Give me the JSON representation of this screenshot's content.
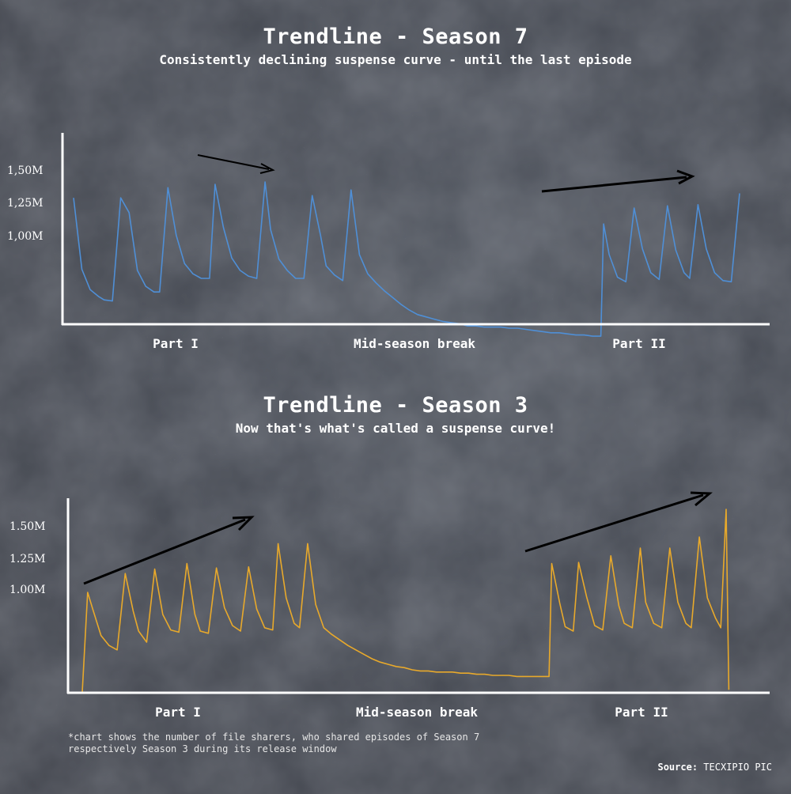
{
  "colors": {
    "season7": "#4f8fd6",
    "season3": "#e8a92b",
    "arrow": "#000000",
    "axis": "#ffffff"
  },
  "chart_data": [
    {
      "type": "line",
      "title": "Trendline - Season 7",
      "subtitle": "Consistently declining suspense curve - until the last episode",
      "ytick_labels": [
        "1,50M",
        "1,25M",
        "1,00M"
      ],
      "yticks": [
        1.5,
        1.25,
        1.0
      ],
      "ylim": [
        0.0,
        1.8
      ],
      "xlim": [
        0,
        240
      ],
      "sections": [
        "Part I",
        "Mid-season break",
        "Part II"
      ],
      "series": [
        {
          "points": [
            [
              0,
              1.38
            ],
            [
              3,
              0.75
            ],
            [
              6,
              0.57
            ],
            [
              9,
              0.51
            ],
            [
              11,
              0.48
            ],
            [
              14,
              0.47
            ],
            [
              17,
              1.38
            ],
            [
              20,
              1.25
            ],
            [
              23,
              0.74
            ],
            [
              26,
              0.6
            ],
            [
              29,
              0.55
            ],
            [
              31,
              0.55
            ],
            [
              34,
              1.47
            ],
            [
              37,
              1.05
            ],
            [
              40,
              0.8
            ],
            [
              43,
              0.71
            ],
            [
              46,
              0.67
            ],
            [
              49,
              0.67
            ],
            [
              51,
              1.5
            ],
            [
              54,
              1.12
            ],
            [
              57,
              0.85
            ],
            [
              60,
              0.74
            ],
            [
              63,
              0.69
            ],
            [
              66,
              0.67
            ],
            [
              69,
              1.52
            ],
            [
              71,
              1.1
            ],
            [
              74,
              0.84
            ],
            [
              77,
              0.74
            ],
            [
              80,
              0.67
            ],
            [
              83,
              0.67
            ],
            [
              86,
              1.4
            ],
            [
              89,
              1.05
            ],
            [
              91,
              0.78
            ],
            [
              94,
              0.7
            ],
            [
              97,
              0.65
            ],
            [
              100,
              1.45
            ],
            [
              103,
              0.88
            ],
            [
              106,
              0.71
            ],
            [
              109,
              0.63
            ],
            [
              112,
              0.56
            ],
            [
              115,
              0.5
            ],
            [
              118,
              0.44
            ],
            [
              121,
              0.39
            ],
            [
              124,
              0.35
            ],
            [
              127,
              0.33
            ],
            [
              130,
              0.31
            ],
            [
              133,
              0.29
            ],
            [
              136,
              0.28
            ],
            [
              139,
              0.27
            ],
            [
              142,
              0.25
            ],
            [
              145,
              0.25
            ],
            [
              148,
              0.24
            ],
            [
              151,
              0.24
            ],
            [
              154,
              0.24
            ],
            [
              157,
              0.23
            ],
            [
              160,
              0.23
            ],
            [
              163,
              0.22
            ],
            [
              166,
              0.21
            ],
            [
              169,
              0.2
            ],
            [
              172,
              0.19
            ],
            [
              175,
              0.19
            ],
            [
              178,
              0.18
            ],
            [
              181,
              0.17
            ],
            [
              184,
              0.17
            ],
            [
              187,
              0.16
            ],
            [
              190,
              0.16
            ],
            [
              191,
              1.15
            ],
            [
              193,
              0.88
            ],
            [
              196,
              0.68
            ],
            [
              199,
              0.64
            ],
            [
              202,
              1.29
            ],
            [
              205,
              0.93
            ],
            [
              208,
              0.72
            ],
            [
              211,
              0.66
            ],
            [
              214,
              1.31
            ],
            [
              217,
              0.92
            ],
            [
              220,
              0.72
            ],
            [
              222,
              0.67
            ],
            [
              225,
              1.32
            ],
            [
              228,
              0.93
            ],
            [
              231,
              0.72
            ],
            [
              234,
              0.65
            ],
            [
              237,
              0.64
            ],
            [
              240,
              1.42
            ]
          ]
        }
      ]
    },
    {
      "type": "line",
      "title": "Trendline - Season 3",
      "subtitle": "Now that's what's called a suspense curve!",
      "ytick_labels": [
        "1.50M",
        "1.25M",
        "1.00M"
      ],
      "yticks": [
        1.5,
        1.25,
        1.0
      ],
      "ylim": [
        0.0,
        1.8
      ],
      "xlim": [
        0,
        240
      ],
      "sections": [
        "Part I",
        "Mid-season break",
        "Part II"
      ],
      "series": [
        {
          "points": [
            [
              0,
              0.0
            ],
            [
              2,
              0.9
            ],
            [
              4,
              0.74
            ],
            [
              7,
              0.51
            ],
            [
              10,
              0.42
            ],
            [
              13,
              0.38
            ],
            [
              16,
              1.07
            ],
            [
              19,
              0.73
            ],
            [
              21,
              0.55
            ],
            [
              24,
              0.45
            ],
            [
              27,
              1.11
            ],
            [
              30,
              0.7
            ],
            [
              33,
              0.56
            ],
            [
              36,
              0.54
            ],
            [
              39,
              1.16
            ],
            [
              42,
              0.7
            ],
            [
              44,
              0.55
            ],
            [
              47,
              0.53
            ],
            [
              50,
              1.12
            ],
            [
              53,
              0.76
            ],
            [
              56,
              0.6
            ],
            [
              59,
              0.55
            ],
            [
              62,
              1.13
            ],
            [
              65,
              0.75
            ],
            [
              68,
              0.58
            ],
            [
              71,
              0.56
            ],
            [
              73,
              1.34
            ],
            [
              76,
              0.85
            ],
            [
              79,
              0.62
            ],
            [
              81,
              0.58
            ],
            [
              84,
              1.34
            ],
            [
              87,
              0.79
            ],
            [
              90,
              0.58
            ],
            [
              93,
              0.52
            ],
            [
              96,
              0.47
            ],
            [
              99,
              0.42
            ],
            [
              102,
              0.38
            ],
            [
              105,
              0.34
            ],
            [
              108,
              0.3
            ],
            [
              111,
              0.27
            ],
            [
              114,
              0.25
            ],
            [
              117,
              0.23
            ],
            [
              120,
              0.22
            ],
            [
              123,
              0.2
            ],
            [
              126,
              0.19
            ],
            [
              129,
              0.19
            ],
            [
              132,
              0.18
            ],
            [
              135,
              0.18
            ],
            [
              138,
              0.18
            ],
            [
              141,
              0.17
            ],
            [
              144,
              0.17
            ],
            [
              147,
              0.16
            ],
            [
              150,
              0.16
            ],
            [
              153,
              0.15
            ],
            [
              156,
              0.15
            ],
            [
              159,
              0.15
            ],
            [
              162,
              0.14
            ],
            [
              165,
              0.14
            ],
            [
              168,
              0.14
            ],
            [
              171,
              0.14
            ],
            [
              174,
              0.14
            ],
            [
              175,
              1.16
            ],
            [
              178,
              0.8
            ],
            [
              180,
              0.59
            ],
            [
              183,
              0.55
            ],
            [
              185,
              1.17
            ],
            [
              188,
              0.86
            ],
            [
              191,
              0.6
            ],
            [
              194,
              0.56
            ],
            [
              197,
              1.23
            ],
            [
              200,
              0.78
            ],
            [
              202,
              0.62
            ],
            [
              205,
              0.58
            ],
            [
              208,
              1.3
            ],
            [
              210,
              0.81
            ],
            [
              213,
              0.62
            ],
            [
              216,
              0.58
            ],
            [
              219,
              1.3
            ],
            [
              222,
              0.81
            ],
            [
              225,
              0.62
            ],
            [
              227,
              0.58
            ],
            [
              230,
              1.4
            ],
            [
              233,
              0.85
            ],
            [
              236,
              0.67
            ],
            [
              238,
              0.58
            ],
            [
              240,
              1.65
            ],
            [
              241,
              0.02
            ]
          ]
        }
      ]
    }
  ],
  "footnote": "*chart shows the number of file sharers, who shared episodes of Season 7 respectively Season 3 during its release window",
  "source_label": "Source:",
  "source_value": "TECXIPIO PIC"
}
